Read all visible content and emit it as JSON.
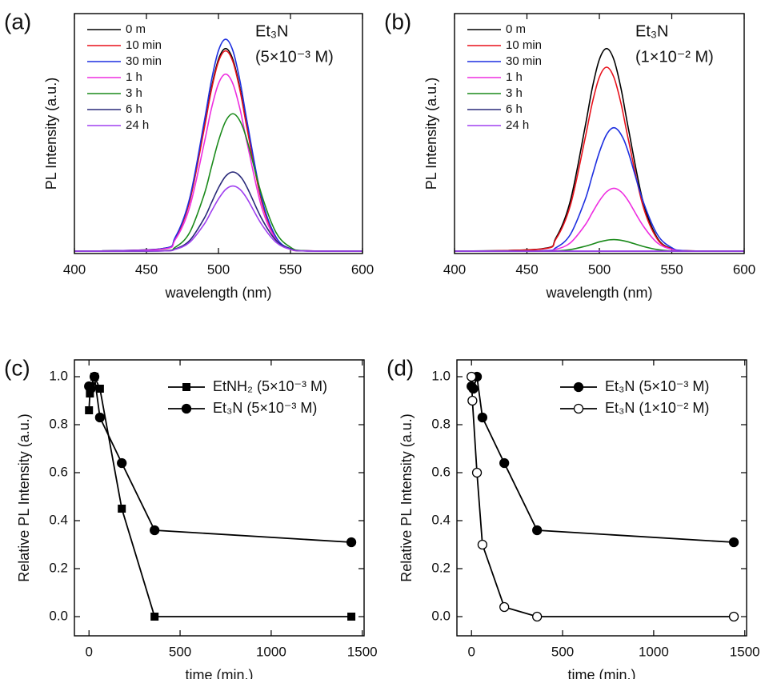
{
  "chart_data": [
    {
      "type": "line",
      "panel_label": "(a)",
      "x_label": "wavelength (nm)",
      "y_label": "PL Intensity (a.u.)",
      "annotations": [
        "Et₃N",
        "(5×10⁻³ M)"
      ],
      "x": [
        400,
        460,
        470,
        480,
        490,
        495,
        500,
        505,
        510,
        515,
        520,
        530,
        540,
        550,
        560,
        600
      ],
      "xlim": [
        400,
        600
      ],
      "xticks": [
        400,
        450,
        500,
        550,
        600
      ],
      "ylim": [
        -0.01,
        1.02
      ],
      "series": [
        {
          "name": "0 m",
          "color": "#000000",
          "values": [
            0,
            0.01,
            0.057,
            0.217,
            0.528,
            0.697,
            0.823,
            0.87,
            0.823,
            0.697,
            0.528,
            0.217,
            0.057,
            0.01,
            0.002,
            0
          ]
        },
        {
          "name": "10 min",
          "color": "#e8101a",
          "values": [
            0,
            0.009,
            0.057,
            0.214,
            0.522,
            0.689,
            0.814,
            0.86,
            0.814,
            0.689,
            0.522,
            0.214,
            0.057,
            0.009,
            0.002,
            0
          ]
        },
        {
          "name": "30 min",
          "color": "#1d2fe0",
          "values": [
            0,
            0.01,
            0.06,
            0.227,
            0.552,
            0.729,
            0.861,
            0.91,
            0.861,
            0.729,
            0.552,
            0.227,
            0.06,
            0.01,
            0.002,
            0
          ]
        },
        {
          "name": "1 h",
          "color": "#ee2ee0",
          "values": [
            0,
            0.008,
            0.05,
            0.189,
            0.461,
            0.609,
            0.719,
            0.76,
            0.719,
            0.609,
            0.461,
            0.189,
            0.05,
            0.008,
            0.002,
            0
          ]
        },
        {
          "name": "3 h",
          "color": "#1a8a1a",
          "values": [
            0,
            0.002,
            0.017,
            0.08,
            0.242,
            0.358,
            0.473,
            0.558,
            0.59,
            0.558,
            0.473,
            0.242,
            0.08,
            0.017,
            0.002,
            0
          ]
        },
        {
          "name": "6 h",
          "color": "#2a2a7a",
          "values": [
            0,
            0.001,
            0.01,
            0.046,
            0.14,
            0.206,
            0.272,
            0.322,
            0.34,
            0.322,
            0.272,
            0.14,
            0.046,
            0.01,
            0.001,
            0
          ]
        },
        {
          "name": "24 h",
          "color": "#a040f0",
          "values": [
            0,
            0.001,
            0.008,
            0.038,
            0.115,
            0.17,
            0.224,
            0.265,
            0.28,
            0.265,
            0.224,
            0.115,
            0.038,
            0.008,
            0.001,
            0
          ]
        }
      ]
    },
    {
      "type": "line",
      "panel_label": "(b)",
      "x_label": "wavelength (nm)",
      "y_label": "PL Intensity (a.u.)",
      "annotations": [
        "Et₃N",
        "(1×10⁻² M)"
      ],
      "x": [
        400,
        460,
        470,
        480,
        490,
        495,
        500,
        505,
        510,
        515,
        520,
        530,
        540,
        550,
        560,
        600
      ],
      "xlim": [
        400,
        600
      ],
      "xticks": [
        400,
        450,
        500,
        550,
        600
      ],
      "ylim": [
        -0.01,
        1.02
      ],
      "series": [
        {
          "name": "0 m",
          "color": "#000000",
          "values": [
            0,
            0.01,
            0.057,
            0.217,
            0.528,
            0.697,
            0.823,
            0.87,
            0.823,
            0.697,
            0.528,
            0.217,
            0.057,
            0.01,
            0.002,
            0
          ]
        },
        {
          "name": "10 min",
          "color": "#e8101a",
          "values": [
            0,
            0.009,
            0.052,
            0.197,
            0.48,
            0.633,
            0.747,
            0.79,
            0.747,
            0.633,
            0.48,
            0.197,
            0.052,
            0.009,
            0.002,
            0
          ]
        },
        {
          "name": "30 min",
          "color": "#1d2fe0",
          "values": [
            0,
            0.002,
            0.015,
            0.072,
            0.218,
            0.322,
            0.425,
            0.501,
            0.53,
            0.501,
            0.425,
            0.218,
            0.072,
            0.015,
            0.002,
            0
          ]
        },
        {
          "name": "1 h",
          "color": "#ee2ee0",
          "values": [
            0,
            0.001,
            0.008,
            0.036,
            0.111,
            0.164,
            0.216,
            0.255,
            0.27,
            0.255,
            0.216,
            0.111,
            0.036,
            0.008,
            0.001,
            0
          ]
        },
        {
          "name": "3 h",
          "color": "#1a8a1a",
          "values": [
            0,
            0,
            0.001,
            0.007,
            0.021,
            0.03,
            0.04,
            0.047,
            0.05,
            0.047,
            0.04,
            0.021,
            0.007,
            0.001,
            0,
            0
          ]
        },
        {
          "name": "6 h",
          "color": "#2a2a7a",
          "values": [
            0,
            0,
            0,
            0,
            0,
            0,
            0,
            0,
            0,
            0,
            0,
            0,
            0,
            0,
            0,
            0
          ]
        },
        {
          "name": "24 h",
          "color": "#a040f0",
          "values": [
            0,
            0,
            0,
            0,
            0,
            0,
            0,
            0,
            0,
            0,
            0,
            0,
            0,
            0,
            0,
            0
          ]
        }
      ]
    },
    {
      "type": "line",
      "panel_label": "(c)",
      "x_label": "time (min.)",
      "y_label": "Relative PL Intensity (a.u.)",
      "xlim": [
        -80,
        1510
      ],
      "xticks": [
        0,
        500,
        1000,
        1500
      ],
      "ylim": [
        -0.08,
        1.07
      ],
      "yticks": [
        {
          "value": 0,
          "label": "0.0"
        },
        {
          "value": 0.2,
          "label": "0.2"
        },
        {
          "value": 0.4,
          "label": "0.4"
        },
        {
          "value": 0.6,
          "label": "0.6"
        },
        {
          "value": 0.8,
          "label": "0.8"
        },
        {
          "value": 1,
          "label": "1.0"
        }
      ],
      "series": [
        {
          "name": "EtNH₂ (5×10⁻³ M)",
          "color": "#000000",
          "marker": "square",
          "x": [
            0,
            5,
            10,
            30,
            60,
            180,
            360,
            1440
          ],
          "values": [
            0.86,
            0.93,
            0.96,
            1.0,
            0.95,
            0.45,
            0.0,
            0.0
          ]
        },
        {
          "name": "Et₃N    (5×10⁻³ M)",
          "color": "#000000",
          "marker": "circle",
          "x": [
            0,
            10,
            30,
            60,
            180,
            360,
            1440
          ],
          "values": [
            0.96,
            0.95,
            1.0,
            0.83,
            0.64,
            0.36,
            0.31
          ]
        }
      ]
    },
    {
      "type": "line",
      "panel_label": "(d)",
      "x_label": "time (min.)",
      "y_label": "Relative PL Intensity (a.u.)",
      "xlim": [
        -80,
        1510
      ],
      "xticks": [
        0,
        500,
        1000,
        1500
      ],
      "ylim": [
        -0.08,
        1.07
      ],
      "yticks": [
        {
          "value": 0,
          "label": "0.0"
        },
        {
          "value": 0.2,
          "label": "0.2"
        },
        {
          "value": 0.4,
          "label": "0.4"
        },
        {
          "value": 0.6,
          "label": "0.6"
        },
        {
          "value": 0.8,
          "label": "0.8"
        },
        {
          "value": 1,
          "label": "1.0"
        }
      ],
      "series": [
        {
          "name": "Et₃N (5×10⁻³ M)",
          "color": "#000000",
          "marker": "circle",
          "x": [
            0,
            10,
            30,
            60,
            180,
            360,
            1440
          ],
          "values": [
            0.96,
            0.95,
            1.0,
            0.83,
            0.64,
            0.36,
            0.31
          ]
        },
        {
          "name": "Et₃N (1×10⁻² M)",
          "color": "#000000",
          "marker": "open-circle",
          "x": [
            0,
            5,
            30,
            60,
            180,
            360,
            1440
          ],
          "values": [
            1.0,
            0.9,
            0.6,
            0.3,
            0.04,
            0.0,
            0.0
          ]
        }
      ]
    }
  ]
}
